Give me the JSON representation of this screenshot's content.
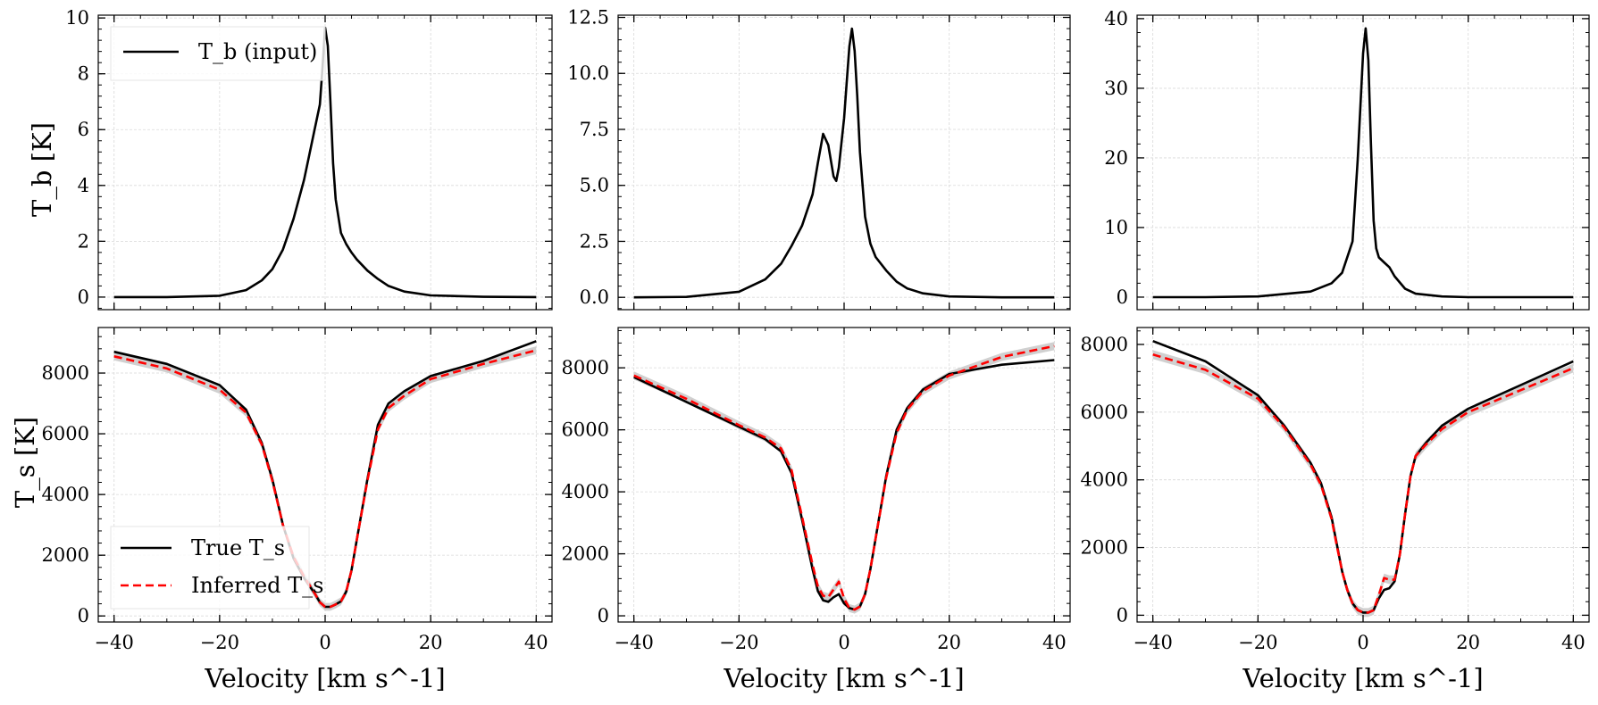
{
  "figure": {
    "ylabel_top": "T_b [K]",
    "ylabel_bottom": "T_s [K]",
    "xlabel": "Velocity [km s^-1]"
  },
  "legend_top": {
    "entries": [
      {
        "label": "T_b (input)",
        "color": "#000000",
        "style": "solid"
      }
    ]
  },
  "legend_bottom": {
    "entries": [
      {
        "label": "True T_s",
        "color": "#000000",
        "style": "solid"
      },
      {
        "label": "Inferred T_s",
        "color": "#ff0000",
        "style": "dashed"
      }
    ]
  },
  "colors": {
    "true": "#000000",
    "inferred": "#ff0000",
    "band": "#c8c8c8",
    "grid": "#d9d9d9"
  },
  "chart_data": [
    {
      "type": "line",
      "panel": "top-1",
      "xlim": [
        -43,
        43
      ],
      "ylim": [
        -0.45,
        10.1
      ],
      "xticks": [
        -40,
        -20,
        0,
        20,
        40
      ],
      "yticks": [
        0,
        2,
        4,
        6,
        8,
        10
      ],
      "ytick_labels": [
        "0",
        "2",
        "4",
        "6",
        "8",
        "10"
      ],
      "grid": true,
      "legend": "top-left",
      "series": [
        {
          "name": "T_b (input)",
          "style": "solid",
          "color": "#000000",
          "x": [
            -40,
            -30,
            -20,
            -15,
            -12,
            -10,
            -8,
            -6,
            -5,
            -4,
            -3,
            -2,
            -1,
            -0.5,
            0,
            0.5,
            1,
            1.5,
            2,
            3,
            4,
            5,
            6,
            8,
            10,
            12,
            15,
            20,
            30,
            40
          ],
          "y": [
            0,
            0,
            0.05,
            0.25,
            0.6,
            1.0,
            1.7,
            2.8,
            3.5,
            4.2,
            5.1,
            6.0,
            6.9,
            8.2,
            9.65,
            9.0,
            7.0,
            4.8,
            3.5,
            2.3,
            1.9,
            1.6,
            1.35,
            0.95,
            0.65,
            0.4,
            0.2,
            0.06,
            0.01,
            0
          ]
        }
      ]
    },
    {
      "type": "line",
      "panel": "top-2",
      "xlim": [
        -43,
        43
      ],
      "ylim": [
        -0.55,
        12.6
      ],
      "xticks": [
        -40,
        -20,
        0,
        20,
        40
      ],
      "yticks": [
        0,
        2.5,
        5.0,
        7.5,
        10.0,
        12.5
      ],
      "ytick_labels": [
        "0.0",
        "2.5",
        "5.0",
        "7.5",
        "10.0",
        "12.5"
      ],
      "grid": true,
      "legend": "",
      "series": [
        {
          "name": "",
          "style": "solid",
          "color": "#000000",
          "x": [
            -40,
            -30,
            -20,
            -15,
            -12,
            -10,
            -8,
            -6,
            -5,
            -4,
            -3,
            -2,
            -1.5,
            -1,
            0,
            0.5,
            1,
            1.5,
            2,
            2.5,
            3,
            4,
            5,
            6,
            8,
            10,
            12,
            15,
            20,
            30,
            40
          ],
          "y": [
            0,
            0.02,
            0.25,
            0.8,
            1.5,
            2.3,
            3.2,
            4.6,
            6.0,
            7.3,
            6.8,
            5.4,
            5.2,
            5.8,
            8.0,
            9.6,
            11.2,
            12.0,
            11.0,
            9.0,
            6.5,
            3.6,
            2.4,
            1.8,
            1.2,
            0.7,
            0.4,
            0.18,
            0.04,
            0,
            0
          ]
        }
      ]
    },
    {
      "type": "line",
      "panel": "top-3",
      "xlim": [
        -43,
        43
      ],
      "ylim": [
        -1.8,
        40.5
      ],
      "xticks": [
        -40,
        -20,
        0,
        20,
        40
      ],
      "yticks": [
        0,
        10,
        20,
        30,
        40
      ],
      "ytick_labels": [
        "0",
        "10",
        "20",
        "30",
        "40"
      ],
      "grid": true,
      "legend": "",
      "series": [
        {
          "name": "",
          "style": "solid",
          "color": "#000000",
          "x": [
            -40,
            -30,
            -20,
            -10,
            -6,
            -4,
            -2,
            -1,
            0,
            0.5,
            1,
            1.5,
            2,
            2.5,
            3,
            4,
            5,
            6,
            8,
            10,
            15,
            20,
            30,
            40
          ],
          "y": [
            0,
            0,
            0.1,
            0.8,
            2.0,
            3.5,
            8.0,
            20,
            35,
            38.6,
            34,
            22,
            11,
            7,
            5.7,
            5,
            4.3,
            3.0,
            1.2,
            0.5,
            0.1,
            0,
            0,
            0
          ]
        }
      ]
    },
    {
      "type": "line",
      "panel": "bottom-1",
      "xlim": [
        -43,
        43
      ],
      "ylim": [
        -200,
        9500
      ],
      "xticks": [
        -40,
        -20,
        0,
        20,
        40
      ],
      "xtick_labels": [
        "−40",
        "−20",
        "0",
        "20",
        "40"
      ],
      "yticks": [
        0,
        2000,
        4000,
        6000,
        8000
      ],
      "ytick_labels": [
        "0",
        "2000",
        "4000",
        "6000",
        "8000"
      ],
      "grid": true,
      "legend": "bottom-left",
      "series": [
        {
          "name": "True T_s",
          "style": "solid",
          "color": "#000000",
          "x": [
            -40,
            -30,
            -20,
            -15,
            -12,
            -10,
            -8,
            -6,
            -4,
            -2,
            -1,
            0,
            1,
            2,
            3,
            4,
            5,
            6,
            8,
            10,
            12,
            15,
            20,
            30,
            40
          ],
          "y": [
            8700,
            8300,
            7600,
            6800,
            5700,
            4500,
            3000,
            1900,
            1250,
            750,
            450,
            300,
            300,
            380,
            480,
            800,
            1500,
            2500,
            4500,
            6300,
            7000,
            7400,
            7900,
            8400,
            9050
          ]
        },
        {
          "name": "Inferred T_s",
          "style": "dashed",
          "color": "#ff0000",
          "x": [
            -40,
            -30,
            -20,
            -15,
            -12,
            -10,
            -8,
            -6,
            -4,
            -2,
            -1,
            0,
            1,
            2,
            3,
            4,
            5,
            6,
            8,
            10,
            12,
            15,
            20,
            30,
            40
          ],
          "y": [
            8550,
            8150,
            7450,
            6700,
            5650,
            4450,
            3000,
            1950,
            1300,
            750,
            450,
            300,
            300,
            380,
            480,
            800,
            1500,
            2500,
            4450,
            6150,
            6850,
            7250,
            7800,
            8300,
            8750
          ]
        }
      ]
    },
    {
      "type": "line",
      "panel": "bottom-2",
      "xlim": [
        -43,
        43
      ],
      "ylim": [
        -200,
        9300
      ],
      "xticks": [
        -40,
        -20,
        0,
        20,
        40
      ],
      "xtick_labels": [
        "−40",
        "−20",
        "0",
        "20",
        "40"
      ],
      "yticks": [
        0,
        2000,
        4000,
        6000,
        8000
      ],
      "ytick_labels": [
        "0",
        "2000",
        "4000",
        "6000",
        "8000"
      ],
      "grid": true,
      "legend": "",
      "series": [
        {
          "name": "",
          "style": "solid",
          "color": "#000000",
          "x": [
            -40,
            -30,
            -20,
            -15,
            -12,
            -10,
            -8,
            -6,
            -5,
            -4,
            -3,
            -2,
            -1,
            0,
            1,
            2,
            3,
            4,
            5,
            6,
            8,
            10,
            12,
            15,
            20,
            30,
            40
          ],
          "y": [
            7700,
            6900,
            6100,
            5700,
            5300,
            4600,
            3100,
            1500,
            800,
            500,
            450,
            600,
            700,
            400,
            250,
            200,
            300,
            700,
            1500,
            2500,
            4500,
            6000,
            6700,
            7300,
            7800,
            8100,
            8250
          ]
        },
        {
          "name": "",
          "style": "dashed",
          "color": "#ff0000",
          "x": [
            -40,
            -30,
            -20,
            -15,
            -12,
            -10,
            -8,
            -6,
            -5,
            -4,
            -3,
            -2,
            -1,
            0,
            1,
            2,
            3,
            4,
            5,
            6,
            8,
            10,
            12,
            15,
            20,
            30,
            40
          ],
          "y": [
            7750,
            7000,
            6150,
            5750,
            5400,
            4700,
            3200,
            1650,
            950,
            650,
            600,
            850,
            1100,
            550,
            250,
            200,
            300,
            700,
            1500,
            2500,
            4450,
            5900,
            6650,
            7250,
            7750,
            8350,
            8700
          ]
        }
      ]
    },
    {
      "type": "line",
      "panel": "bottom-3",
      "xlim": [
        -43,
        43
      ],
      "ylim": [
        -200,
        8500
      ],
      "xticks": [
        -40,
        -20,
        0,
        20,
        40
      ],
      "xtick_labels": [
        "−40",
        "−20",
        "0",
        "20",
        "40"
      ],
      "yticks": [
        0,
        2000,
        4000,
        6000,
        8000
      ],
      "ytick_labels": [
        "0",
        "2000",
        "4000",
        "6000",
        "8000"
      ],
      "grid": true,
      "legend": "",
      "series": [
        {
          "name": "",
          "style": "solid",
          "color": "#000000",
          "x": [
            -40,
            -30,
            -20,
            -15,
            -10,
            -8,
            -6,
            -5,
            -4,
            -3,
            -2,
            -1,
            0,
            1,
            2,
            3,
            4,
            5,
            6,
            7,
            8,
            9,
            10,
            12,
            15,
            20,
            30,
            40
          ],
          "y": [
            8100,
            7500,
            6500,
            5600,
            4500,
            3900,
            2900,
            2100,
            1300,
            750,
            350,
            150,
            80,
            80,
            150,
            500,
            750,
            800,
            1000,
            1800,
            3000,
            4100,
            4700,
            5100,
            5600,
            6100,
            6800,
            7500
          ]
        },
        {
          "name": "",
          "style": "dashed",
          "color": "#ff0000",
          "x": [
            -40,
            -30,
            -20,
            -15,
            -10,
            -8,
            -6,
            -5,
            -4,
            -3,
            -2,
            -1,
            0,
            1,
            2,
            3,
            4,
            5,
            6,
            7,
            8,
            9,
            10,
            12,
            15,
            20,
            30,
            40
          ],
          "y": [
            7700,
            7250,
            6400,
            5550,
            4450,
            3850,
            2850,
            2050,
            1300,
            750,
            350,
            150,
            80,
            80,
            150,
            600,
            1100,
            1050,
            1050,
            1800,
            3000,
            4100,
            4700,
            5050,
            5500,
            6000,
            6650,
            7300
          ]
        }
      ]
    }
  ]
}
